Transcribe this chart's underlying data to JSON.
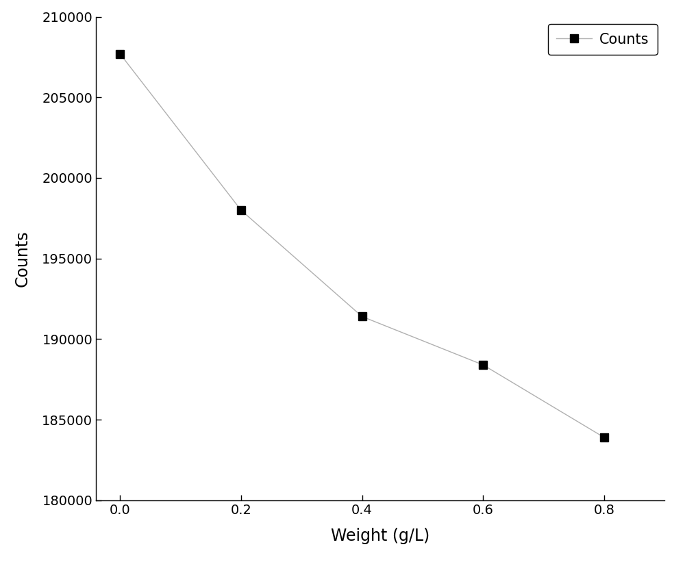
{
  "x": [
    0.0,
    0.2,
    0.4,
    0.6,
    0.8
  ],
  "y": [
    207700,
    198000,
    191400,
    188400,
    183900
  ],
  "xlabel": "Weight (g/L)",
  "ylabel": "Counts",
  "legend_label": "Counts",
  "xlim": [
    -0.04,
    0.9
  ],
  "ylim": [
    180000,
    210000
  ],
  "yticks": [
    180000,
    185000,
    190000,
    195000,
    200000,
    205000,
    210000
  ],
  "xticks": [
    0.0,
    0.2,
    0.4,
    0.6,
    0.8
  ],
  "line_color": "#b0b0b0",
  "marker_color": "#000000",
  "marker": "s",
  "marker_size": 8,
  "line_width": 1.0,
  "xlabel_fontsize": 17,
  "ylabel_fontsize": 17,
  "tick_fontsize": 14,
  "legend_fontsize": 15,
  "background_color": "#ffffff"
}
